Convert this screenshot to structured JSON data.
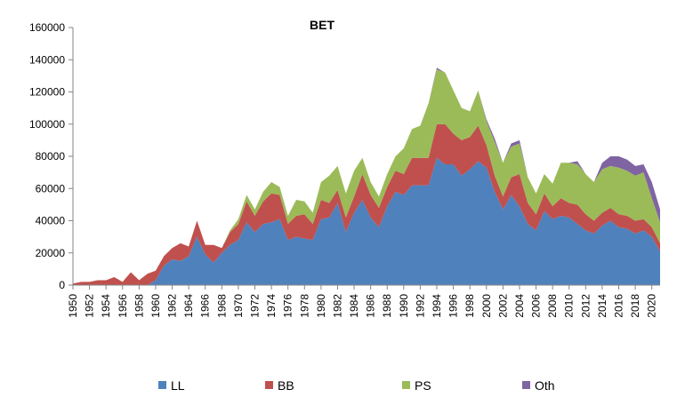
{
  "chart_data": {
    "type": "area",
    "stacked": true,
    "title": "BET",
    "xlabel": "",
    "ylabel": "",
    "ylim": [
      0,
      160000
    ],
    "yticks": [
      0,
      20000,
      40000,
      60000,
      80000,
      100000,
      120000,
      140000,
      160000
    ],
    "xlim": [
      1950,
      2021
    ],
    "xticks": [
      1950,
      1952,
      1954,
      1956,
      1958,
      1960,
      1962,
      1964,
      1966,
      1968,
      1970,
      1972,
      1974,
      1976,
      1978,
      1980,
      1982,
      1984,
      1986,
      1988,
      1990,
      1992,
      1994,
      1996,
      1998,
      2000,
      2002,
      2004,
      2006,
      2008,
      2010,
      2012,
      2014,
      2016,
      2018,
      2020
    ],
    "grid": false,
    "legend_position": "bottom",
    "x": [
      1950,
      1951,
      1952,
      1953,
      1954,
      1955,
      1956,
      1957,
      1958,
      1959,
      1960,
      1961,
      1962,
      1963,
      1964,
      1965,
      1966,
      1967,
      1968,
      1969,
      1970,
      1971,
      1972,
      1973,
      1974,
      1975,
      1976,
      1977,
      1978,
      1979,
      1980,
      1981,
      1982,
      1983,
      1984,
      1985,
      1986,
      1987,
      1988,
      1989,
      1990,
      1991,
      1992,
      1993,
      1994,
      1995,
      1996,
      1997,
      1998,
      1999,
      2000,
      2001,
      2002,
      2003,
      2004,
      2005,
      2006,
      2007,
      2008,
      2009,
      2010,
      2011,
      2012,
      2013,
      2014,
      2015,
      2016,
      2017,
      2018,
      2019,
      2020,
      2021
    ],
    "series": [
      {
        "name": "LL",
        "color": "#4f81bd",
        "values": [
          0,
          0,
          0,
          0,
          0,
          0,
          0,
          0,
          0,
          0,
          3000,
          12000,
          16000,
          15000,
          18000,
          30000,
          19000,
          14000,
          20000,
          25000,
          28000,
          39000,
          33000,
          38000,
          39000,
          41000,
          28000,
          30000,
          29000,
          28000,
          41000,
          42000,
          51000,
          33000,
          45000,
          53000,
          42000,
          36000,
          49000,
          58000,
          56000,
          62000,
          62000,
          62000,
          79000,
          75000,
          75000,
          68000,
          72000,
          77000,
          73000,
          58000,
          47000,
          56000,
          49000,
          38000,
          34000,
          46000,
          41000,
          43000,
          42000,
          38000,
          34000,
          32000,
          37000,
          40000,
          36000,
          35000,
          32000,
          34000,
          30000,
          21000
        ]
      },
      {
        "name": "BB",
        "color": "#c0504d",
        "values": [
          1000,
          2000,
          2000,
          3000,
          3000,
          5000,
          2000,
          8000,
          3000,
          7000,
          6000,
          6000,
          7000,
          11000,
          6000,
          10000,
          6000,
          11000,
          3000,
          8000,
          10000,
          13000,
          10000,
          14000,
          18000,
          15000,
          10000,
          13000,
          15000,
          10000,
          12000,
          9000,
          8000,
          9000,
          10000,
          16000,
          14000,
          12000,
          12000,
          13000,
          13000,
          17000,
          17000,
          17000,
          21000,
          25000,
          19000,
          22000,
          20000,
          22000,
          14000,
          10000,
          8000,
          11000,
          20000,
          13000,
          10000,
          11000,
          8000,
          11000,
          9000,
          12000,
          10000,
          8000,
          8000,
          8000,
          8000,
          8000,
          8000,
          7000,
          6000,
          5000
        ]
      },
      {
        "name": "PS",
        "color": "#9bbb59",
        "values": [
          0,
          0,
          0,
          0,
          0,
          0,
          0,
          0,
          0,
          0,
          0,
          0,
          0,
          0,
          0,
          0,
          0,
          0,
          0,
          1000,
          3000,
          4000,
          4000,
          6000,
          7000,
          5000,
          5000,
          10000,
          8000,
          7000,
          11000,
          17000,
          15000,
          15000,
          16000,
          10000,
          8000,
          7000,
          8000,
          9000,
          16000,
          18000,
          20000,
          34000,
          34000,
          32000,
          27000,
          20000,
          16000,
          22000,
          15000,
          21000,
          21000,
          19000,
          19000,
          16000,
          13000,
          12000,
          14000,
          22000,
          25000,
          25000,
          25000,
          24000,
          27000,
          26000,
          29000,
          28000,
          28000,
          29000,
          18000,
          13000
        ]
      },
      {
        "name": "Oth",
        "color": "#8064a2",
        "values": [
          0,
          0,
          0,
          0,
          0,
          0,
          0,
          0,
          0,
          0,
          0,
          0,
          0,
          0,
          0,
          0,
          0,
          0,
          0,
          0,
          0,
          0,
          0,
          0,
          0,
          0,
          0,
          0,
          0,
          0,
          0,
          0,
          0,
          0,
          0,
          0,
          0,
          0,
          0,
          0,
          0,
          0,
          0,
          0,
          1000,
          0,
          0,
          0,
          0,
          0,
          1000,
          2000,
          0,
          2000,
          2000,
          0,
          0,
          0,
          0,
          0,
          0,
          2000,
          0,
          0,
          4000,
          6000,
          7000,
          7000,
          6000,
          5000,
          10000,
          8000
        ]
      }
    ]
  }
}
